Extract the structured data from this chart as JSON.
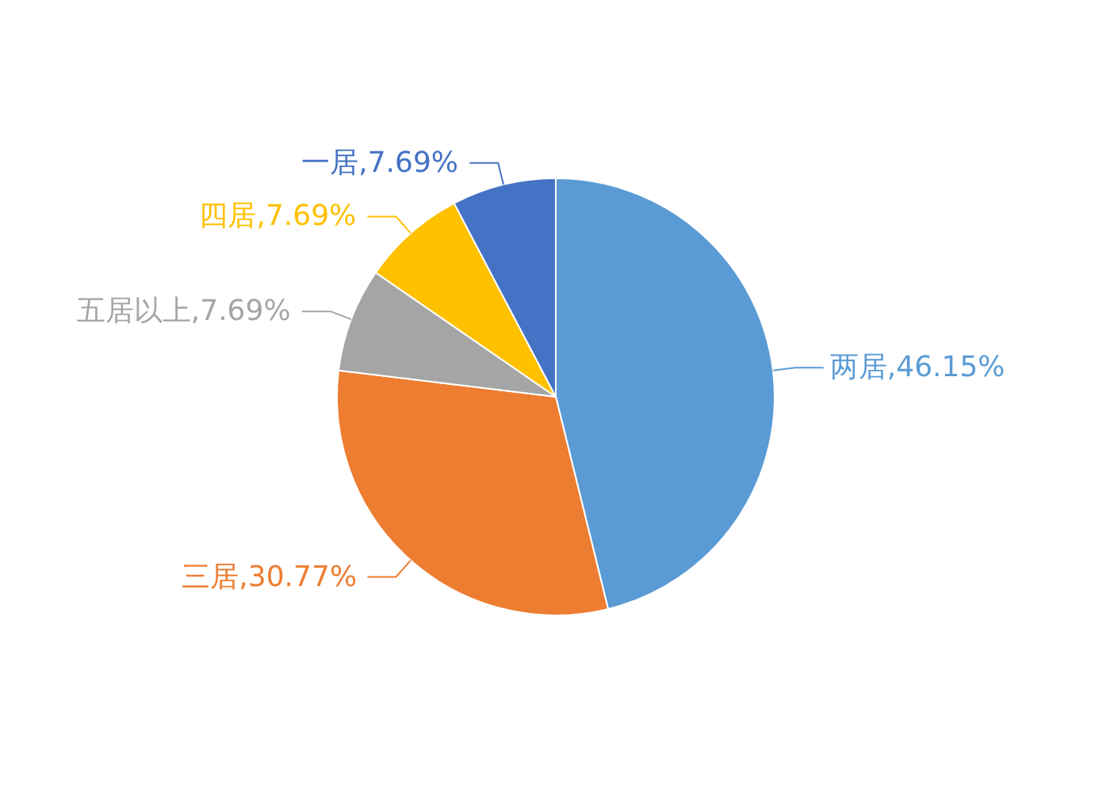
{
  "chart_data": {
    "type": "pie",
    "categories": [
      "两居",
      "三居",
      "五居以上",
      "四居",
      "一居"
    ],
    "values": [
      46.15,
      30.77,
      7.69,
      7.69,
      7.69
    ],
    "colors": [
      "#5b9bd5",
      "#ed7d31",
      "#a5a5a5",
      "#ffc000",
      "#4472c4"
    ],
    "value_labels": [
      ",46.15%",
      ",30.77%",
      ",7.69%",
      ",7.69%",
      ",7.69%"
    ]
  }
}
